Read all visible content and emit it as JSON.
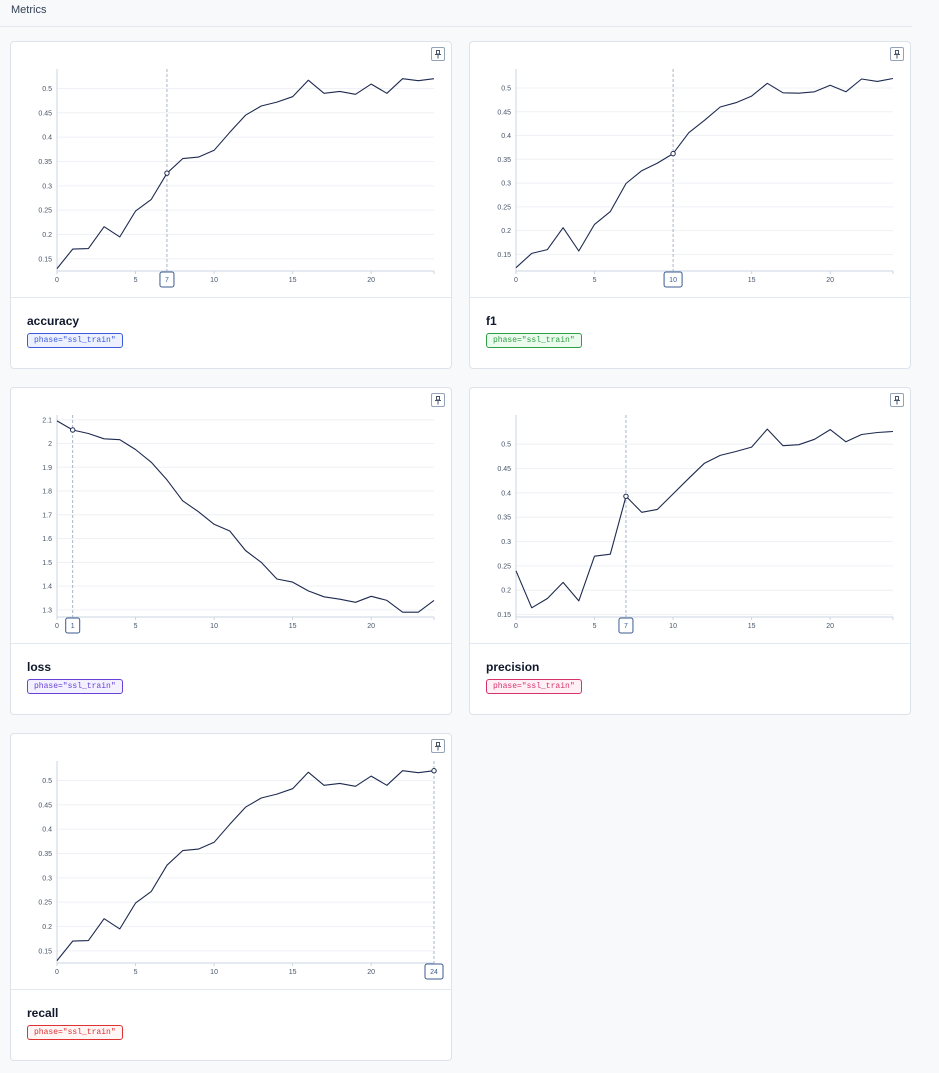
{
  "page": {
    "section_title": "Metrics"
  },
  "cards": [
    {
      "name": "accuracy",
      "tag": "phase=\"ssl_train\"",
      "tag_color": "#3b5bdb",
      "tag_bg": "#edf1ff",
      "cursor_x": 7,
      "cursor_label": "7",
      "chart_data": {
        "type": "line",
        "x": [
          0,
          1,
          2,
          3,
          4,
          5,
          6,
          7,
          8,
          9,
          10,
          11,
          12,
          13,
          14,
          15,
          16,
          17,
          18,
          19,
          20,
          21,
          22,
          23,
          24
        ],
        "series": [
          {
            "values": [
              0.13,
              0.17,
              0.171,
              0.216,
              0.195,
              0.248,
              0.272,
              0.326,
              0.356,
              0.359,
              0.373,
              0.41,
              0.445,
              0.464,
              0.472,
              0.483,
              0.517,
              0.49,
              0.494,
              0.488,
              0.509,
              0.49,
              0.52,
              0.516,
              0.52
            ]
          }
        ],
        "xlim": [
          0,
          24
        ],
        "ylim": [
          0.125,
          0.54
        ],
        "x_ticks": [
          0,
          5,
          10,
          15,
          20
        ],
        "y_ticks": [
          0.15,
          0.2,
          0.25,
          0.3,
          0.35,
          0.4,
          0.45,
          0.5
        ],
        "y_tick_labels": [
          "0.15",
          "0.2",
          "0.25",
          "0.3",
          "0.35",
          "0.4",
          "0.45",
          "0.5"
        ]
      }
    },
    {
      "name": "f1",
      "tag": "phase=\"ssl_train\"",
      "tag_color": "#2f9e44",
      "tag_bg": "#ebfbee",
      "cursor_x": 10,
      "cursor_label": "10",
      "chart_data": {
        "type": "line",
        "x": [
          0,
          1,
          2,
          3,
          4,
          5,
          6,
          7,
          8,
          9,
          10,
          11,
          12,
          13,
          14,
          15,
          16,
          17,
          18,
          19,
          20,
          21,
          22,
          23,
          24
        ],
        "series": [
          {
            "values": [
              0.122,
              0.152,
              0.16,
              0.206,
              0.157,
              0.213,
              0.24,
              0.299,
              0.326,
              0.342,
              0.362,
              0.406,
              0.432,
              0.46,
              0.469,
              0.483,
              0.51,
              0.49,
              0.489,
              0.492,
              0.506,
              0.492,
              0.519,
              0.514,
              0.52
            ]
          }
        ],
        "xlim": [
          0,
          24
        ],
        "ylim": [
          0.115,
          0.54
        ],
        "x_ticks": [
          0,
          5,
          10,
          15,
          20
        ],
        "y_ticks": [
          0.15,
          0.2,
          0.25,
          0.3,
          0.35,
          0.4,
          0.45,
          0.5
        ],
        "y_tick_labels": [
          "0.15",
          "0.2",
          "0.25",
          "0.3",
          "0.35",
          "0.4",
          "0.45",
          "0.5"
        ]
      }
    },
    {
      "name": "loss",
      "tag": "phase=\"ssl_train\"",
      "tag_color": "#6741d9",
      "tag_bg": "#f3f0ff",
      "cursor_x": 1,
      "cursor_label": "1",
      "chart_data": {
        "type": "line",
        "x": [
          0,
          1,
          2,
          3,
          4,
          5,
          6,
          7,
          8,
          9,
          10,
          11,
          12,
          13,
          14,
          15,
          16,
          17,
          18,
          19,
          20,
          21,
          22,
          23,
          24
        ],
        "series": [
          {
            "values": [
              2.095,
              2.057,
              2.042,
              2.02,
              2.016,
              1.975,
              1.921,
              1.847,
              1.759,
              1.713,
              1.66,
              1.632,
              1.55,
              1.5,
              1.43,
              1.417,
              1.38,
              1.355,
              1.345,
              1.332,
              1.357,
              1.34,
              1.29,
              1.29,
              1.34
            ]
          }
        ],
        "xlim": [
          0,
          24
        ],
        "ylim": [
          1.27,
          2.12
        ],
        "x_ticks": [
          0,
          5,
          10,
          15,
          20
        ],
        "y_ticks": [
          1.3,
          1.4,
          1.5,
          1.6,
          1.7,
          1.8,
          1.9,
          2,
          2.1
        ],
        "y_tick_labels": [
          "1.3",
          "1.4",
          "1.5",
          "1.6",
          "1.7",
          "1.8",
          "1.9",
          "2",
          "2.1"
        ]
      }
    },
    {
      "name": "precision",
      "tag": "phase=\"ssl_train\"",
      "tag_color": "#d6336c",
      "tag_bg": "#fff0f6",
      "cursor_x": 7,
      "cursor_label": "7",
      "chart_data": {
        "type": "line",
        "x": [
          0,
          1,
          2,
          3,
          4,
          5,
          6,
          7,
          8,
          9,
          10,
          11,
          12,
          13,
          14,
          15,
          16,
          17,
          18,
          19,
          20,
          21,
          22,
          23,
          24
        ],
        "series": [
          {
            "values": [
              0.24,
              0.164,
              0.183,
              0.216,
              0.178,
              0.27,
              0.274,
              0.393,
              0.36,
              0.366,
              0.398,
              0.43,
              0.461,
              0.477,
              0.485,
              0.494,
              0.531,
              0.497,
              0.499,
              0.51,
              0.53,
              0.505,
              0.52,
              0.524,
              0.526
            ]
          }
        ],
        "xlim": [
          0,
          24
        ],
        "ylim": [
          0.145,
          0.56
        ],
        "x_ticks": [
          0,
          5,
          10,
          15,
          20
        ],
        "y_ticks": [
          0.15,
          0.2,
          0.25,
          0.3,
          0.35,
          0.4,
          0.45,
          0.5
        ],
        "y_tick_labels": [
          "0.15",
          "0.2",
          "0.25",
          "0.3",
          "0.35",
          "0.4",
          "0.45",
          "0.5"
        ]
      }
    },
    {
      "name": "recall",
      "tag": "phase=\"ssl_train\"",
      "tag_color": "#e03131",
      "tag_bg": "#fff5f5",
      "cursor_x": 24,
      "cursor_label": "24",
      "chart_data": {
        "type": "line",
        "x": [
          0,
          1,
          2,
          3,
          4,
          5,
          6,
          7,
          8,
          9,
          10,
          11,
          12,
          13,
          14,
          15,
          16,
          17,
          18,
          19,
          20,
          21,
          22,
          23,
          24
        ],
        "series": [
          {
            "values": [
              0.13,
              0.17,
              0.171,
              0.216,
              0.195,
              0.248,
              0.272,
              0.326,
              0.356,
              0.359,
              0.373,
              0.41,
              0.445,
              0.464,
              0.472,
              0.483,
              0.517,
              0.49,
              0.494,
              0.488,
              0.509,
              0.49,
              0.52,
              0.516,
              0.52
            ]
          }
        ],
        "xlim": [
          0,
          24
        ],
        "ylim": [
          0.125,
          0.54
        ],
        "x_ticks": [
          0,
          5,
          10,
          15,
          20
        ],
        "y_ticks": [
          0.15,
          0.2,
          0.25,
          0.3,
          0.35,
          0.4,
          0.45,
          0.5
        ],
        "y_tick_labels": [
          "0.15",
          "0.2",
          "0.25",
          "0.3",
          "0.35",
          "0.4",
          "0.45",
          "0.5"
        ]
      }
    }
  ],
  "icons": {
    "pin": "pin-icon"
  },
  "colors": {
    "line": "#1e2a4f",
    "grid": "#eef1f5",
    "cursor": "#94a3b8",
    "cursor_label_border": "#3b5b8f"
  }
}
